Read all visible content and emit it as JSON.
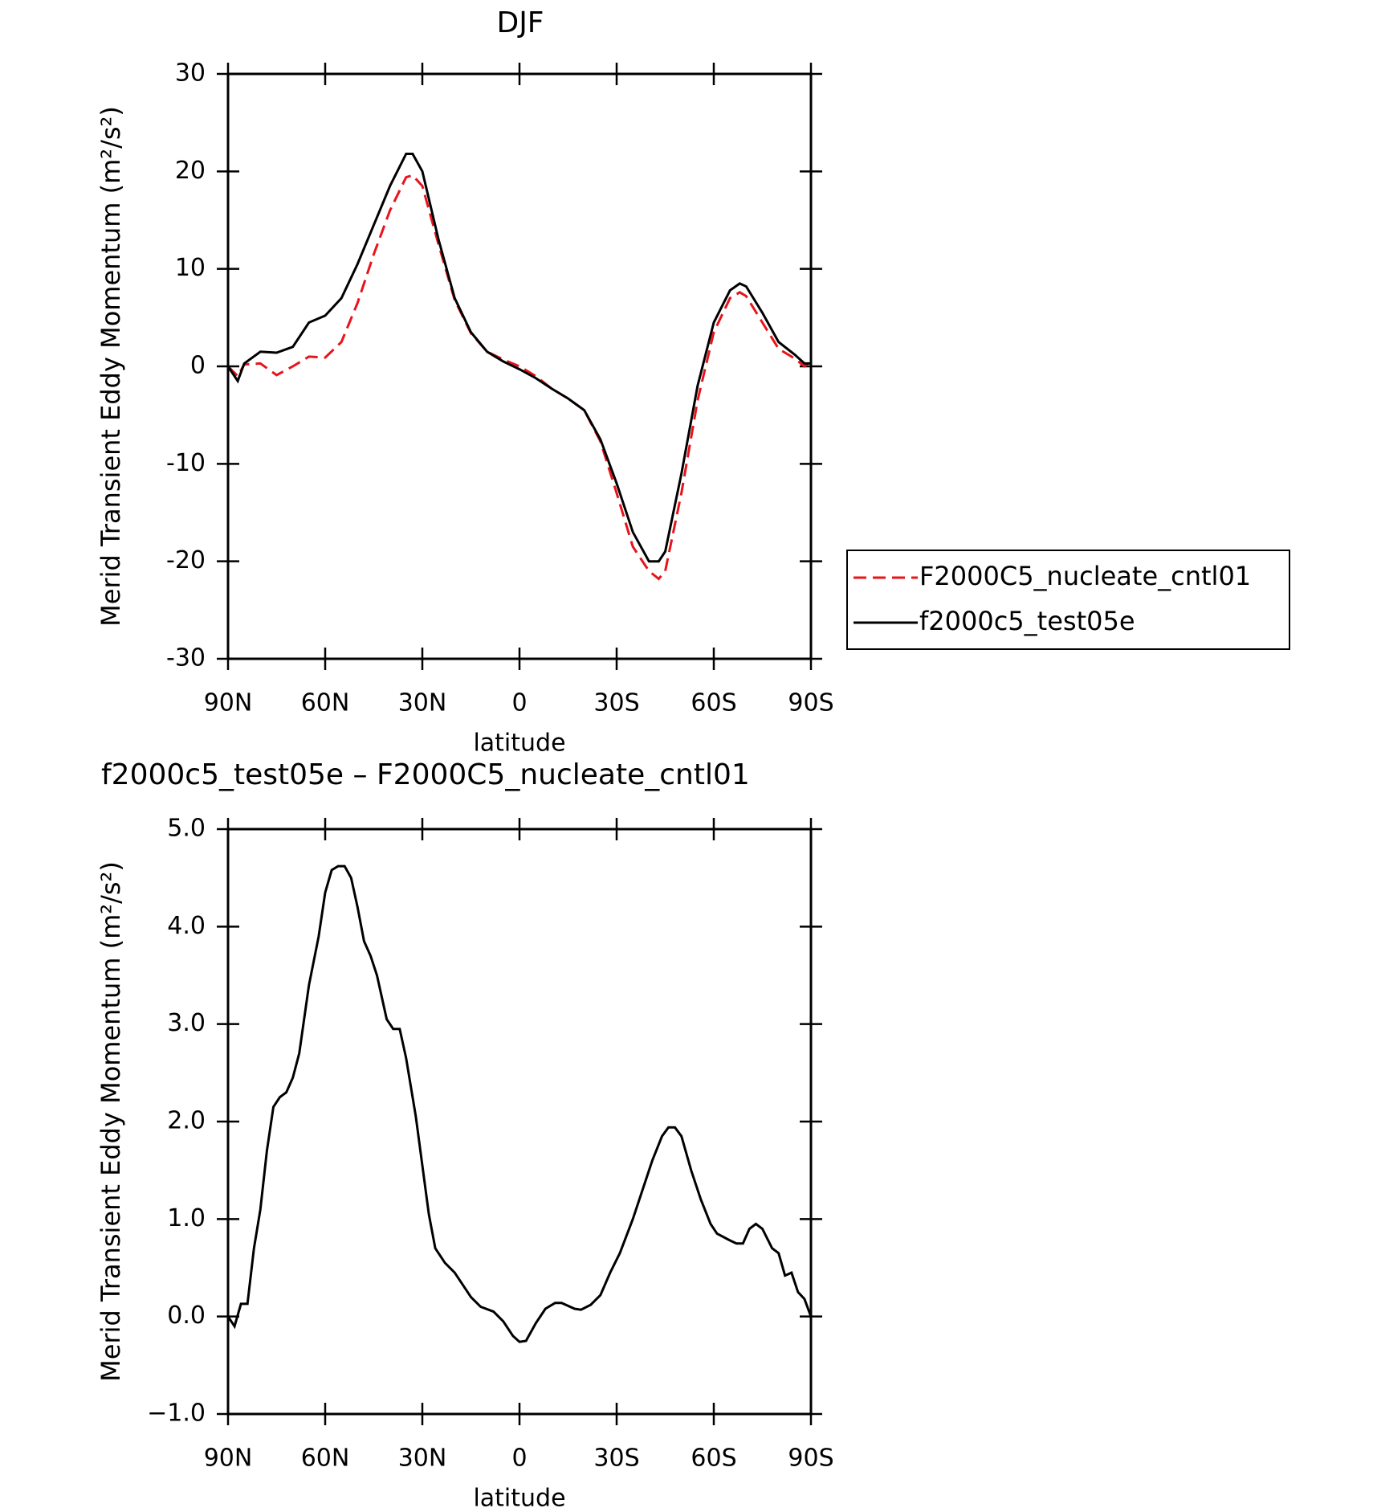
{
  "chart_data": [
    {
      "type": "line",
      "title": "DJF",
      "ylabel": "Merid Transient Eddy Momentum (m²/s²)",
      "xlabel": "latitude",
      "x": [
        90,
        87,
        85,
        80,
        75,
        70,
        65,
        60,
        55,
        50,
        45,
        40,
        35,
        33,
        30,
        25,
        20,
        15,
        10,
        5,
        0,
        -5,
        -10,
        -15,
        -20,
        -25,
        -30,
        -35,
        -40,
        -43,
        -45,
        -50,
        -55,
        -60,
        -65,
        -68,
        -70,
        -75,
        -80,
        -85,
        -88,
        -90
      ],
      "xlim": [
        90,
        -90
      ],
      "xticks": [
        {
          "value": 90,
          "label": "90N"
        },
        {
          "value": 60,
          "label": "60N"
        },
        {
          "value": 30,
          "label": "30N"
        },
        0,
        {
          "value": -30,
          "label": "30S"
        },
        {
          "value": -60,
          "label": "60S"
        },
        {
          "value": -90,
          "label": "90S"
        }
      ],
      "ylim": [
        -30,
        30
      ],
      "yticks": [
        -30,
        -20,
        -10,
        0,
        10,
        20,
        30
      ],
      "legend": "right",
      "series": [
        {
          "name": "F2000C5_nucleate_cntl01",
          "color": "#e8141b",
          "dash": true,
          "values": [
            0,
            -1,
            0.2,
            0.3,
            -0.9,
            0,
            1,
            0.9,
            2.5,
            6.5,
            11.5,
            16,
            19.4,
            19.6,
            18.5,
            12.5,
            6.8,
            3.4,
            1.5,
            0.7,
            0,
            -1,
            -2.3,
            -3.3,
            -4.5,
            -7.7,
            -13,
            -18.5,
            -21,
            -21.8,
            -21,
            -13,
            -3.5,
            3.5,
            7,
            7.6,
            7.2,
            4.5,
            1.8,
            0.8,
            0,
            0.5
          ]
        },
        {
          "name": "f2000c5_test05e",
          "color": "#000000",
          "dash": false,
          "values": [
            0,
            -1.5,
            0.3,
            1.5,
            1.4,
            2,
            4.5,
            5.2,
            7,
            10.5,
            14.5,
            18.5,
            21.8,
            21.8,
            20,
            13,
            7,
            3.5,
            1.5,
            0.5,
            -0.3,
            -1.2,
            -2.3,
            -3.3,
            -4.5,
            -7.5,
            -12,
            -17,
            -20,
            -20,
            -19,
            -11,
            -2,
            4.5,
            7.8,
            8.5,
            8.2,
            5.5,
            2.5,
            1.2,
            0.3,
            0.3
          ]
        }
      ]
    },
    {
      "type": "line",
      "title": "f2000c5_test05e – F2000C5_nucleate_cntl01",
      "ylabel": "Merid Transient Eddy Momentum (m²/s²)",
      "xlabel": "latitude",
      "x": [
        90,
        88,
        86,
        84,
        82,
        80,
        78,
        76,
        74,
        72,
        70,
        68,
        65,
        62,
        60,
        58,
        56,
        54,
        52,
        50,
        48,
        46,
        44,
        41,
        39,
        37,
        35,
        32,
        28,
        26,
        23,
        20,
        15,
        12,
        8,
        5,
        2,
        0,
        -2,
        -5,
        -8,
        -11,
        -13,
        -17,
        -19,
        -22,
        -25,
        -28,
        -31,
        -35,
        -38,
        -41,
        -44,
        -46,
        -48,
        -50,
        -53,
        -56,
        -59,
        -61,
        -65,
        -67,
        -69,
        -71,
        -73,
        -75,
        -78,
        -80,
        -82,
        -84,
        -86,
        -88,
        -90
      ],
      "xlim": [
        90,
        -90
      ],
      "xticks": [
        {
          "value": 90,
          "label": "90N"
        },
        {
          "value": 60,
          "label": "60N"
        },
        {
          "value": 30,
          "label": "30N"
        },
        0,
        {
          "value": -30,
          "label": "30S"
        },
        {
          "value": -60,
          "label": "60S"
        },
        {
          "value": -90,
          "label": "90S"
        }
      ],
      "ylim": [
        -1,
        5
      ],
      "yticks": [
        {
          "value": -1,
          "label": "−1.0"
        },
        {
          "value": 0,
          "label": "0.0"
        },
        {
          "value": 1,
          "label": "1.0"
        },
        {
          "value": 2,
          "label": "2.0"
        },
        {
          "value": 3,
          "label": "3.0"
        },
        {
          "value": 4,
          "label": "4.0"
        },
        {
          "value": 5,
          "label": "5.0"
        }
      ],
      "series": [
        {
          "color": "#000000",
          "dash": false,
          "values": [
            0,
            -0.1,
            0.13,
            0.13,
            0.7,
            1.1,
            1.7,
            2.15,
            2.25,
            2.3,
            2.45,
            2.7,
            3.4,
            3.9,
            4.35,
            4.58,
            4.62,
            4.62,
            4.5,
            4.2,
            3.85,
            3.7,
            3.5,
            3.05,
            2.95,
            2.95,
            2.65,
            2.05,
            1.05,
            0.7,
            0.55,
            0.45,
            0.2,
            0.1,
            0.05,
            -0.05,
            -0.2,
            -0.26,
            -0.25,
            -0.07,
            0.08,
            0.14,
            0.14,
            0.08,
            0.07,
            0.12,
            0.22,
            0.45,
            0.65,
            1.0,
            1.3,
            1.6,
            1.85,
            1.94,
            1.94,
            1.85,
            1.5,
            1.2,
            0.95,
            0.85,
            0.78,
            0.75,
            0.75,
            0.9,
            0.95,
            0.9,
            0.7,
            0.65,
            0.42,
            0.45,
            0.25,
            0.18,
            0
          ]
        }
      ]
    }
  ]
}
